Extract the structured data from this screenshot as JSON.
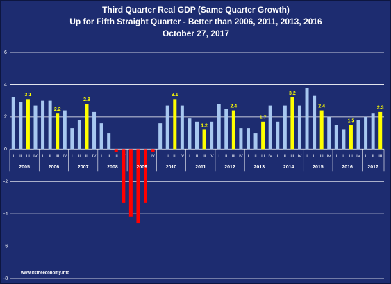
{
  "chart_data": {
    "type": "bar",
    "title": "Third Quarter Real GDP (Same Quarter Growth)",
    "subtitle": "Up for Fifth Straight Quarter - Better than 2006, 2011, 2013, 2016",
    "date": "October 27, 2017",
    "source": "www.itstheeconomy.info",
    "categories": [
      "I",
      "II",
      "III",
      "IV",
      "I",
      "II",
      "III",
      "IV",
      "I",
      "II",
      "III",
      "IV",
      "I",
      "II",
      "III",
      "IV",
      "I",
      "II",
      "III",
      "IV",
      "I",
      "II",
      "III",
      "IV",
      "I",
      "II",
      "III",
      "IV",
      "I",
      "II",
      "III",
      "IV",
      "I",
      "II",
      "III",
      "IV",
      "I",
      "II",
      "III",
      "IV",
      "I",
      "II",
      "III",
      "IV",
      "I",
      "II",
      "III",
      "IV",
      "I",
      "II",
      "III"
    ],
    "years": [
      "2005",
      "2006",
      "2007",
      "2008",
      "2009",
      "2010",
      "2011",
      "2012",
      "2013",
      "2014",
      "2015",
      "2016",
      "2017"
    ],
    "values": [
      3.2,
      2.9,
      3.1,
      2.7,
      3.0,
      3.0,
      2.2,
      2.4,
      1.3,
      1.8,
      2.8,
      2.3,
      1.6,
      1.0,
      -0.2,
      -3.3,
      -4.2,
      -4.6,
      -3.3,
      -0.2,
      1.6,
      2.7,
      3.1,
      2.7,
      1.9,
      1.7,
      1.2,
      1.7,
      2.8,
      2.5,
      2.4,
      1.3,
      1.3,
      1.0,
      1.7,
      2.7,
      1.7,
      2.7,
      3.2,
      2.7,
      3.8,
      3.3,
      2.4,
      2.0,
      1.5,
      1.2,
      1.5,
      1.8,
      2.0,
      2.2,
      2.3
    ],
    "value_labels": [
      null,
      null,
      "3.1",
      null,
      null,
      null,
      "2.2",
      null,
      null,
      null,
      "2.8",
      null,
      null,
      null,
      null,
      null,
      null,
      null,
      null,
      null,
      null,
      null,
      "3.1",
      null,
      null,
      null,
      "1.2",
      null,
      null,
      null,
      "2.4",
      null,
      null,
      null,
      "1.7",
      null,
      null,
      null,
      "3.2",
      null,
      null,
      null,
      "2.4",
      null,
      null,
      null,
      "1.5",
      null,
      null,
      null,
      "2.3"
    ],
    "colors": {
      "normal": "#a8c8f0",
      "highlight": "#ffff00",
      "negative": "#ff0000"
    },
    "ylim": [
      -8,
      6
    ],
    "yticks": [
      -8,
      -6,
      -4,
      -2,
      0,
      2,
      4,
      6
    ],
    "grid": true
  }
}
